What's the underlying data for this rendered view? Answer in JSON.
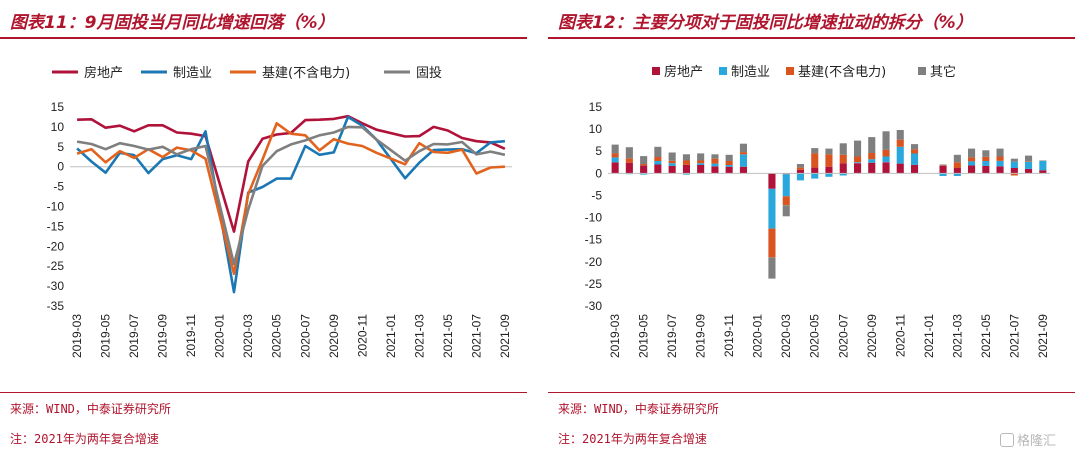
{
  "left": {
    "title": "图表11：9月固投当月同比增速回落（%）",
    "source": "来源：WIND，中泰证券研究所",
    "note": "注：2021年为两年复合增速",
    "chart_data": {
      "type": "line",
      "x": [
        "2019-03",
        "2019-04",
        "2019-05",
        "2019-06",
        "2019-07",
        "2019-08",
        "2019-09",
        "2019-10",
        "2019-11",
        "2019-12",
        "2020-01",
        "2020-02",
        "2020-03",
        "2020-04",
        "2020-05",
        "2020-06",
        "2020-07",
        "2020-08",
        "2020-09",
        "2020-10",
        "2020-11",
        "2020-12",
        "2021-01",
        "2021-02",
        "2021-03",
        "2021-04",
        "2021-05",
        "2021-06",
        "2021-07",
        "2021-08",
        "2021-09"
      ],
      "x_tick_labels": [
        "2019-03",
        "2019-05",
        "2019-07",
        "2019-09",
        "2019-11",
        "2020-01",
        "2020-03",
        "2020-05",
        "2020-07",
        "2020-09",
        "2020-11",
        "2021-01",
        "2021-03",
        "2021-05",
        "2021-07",
        "2021-09"
      ],
      "ylim": [
        -35,
        15
      ],
      "yticks": [
        15,
        10,
        5,
        0,
        -5,
        -10,
        -15,
        -20,
        -25,
        -30,
        -35
      ],
      "legend_position": "top",
      "series": [
        {
          "name": "房地产",
          "color": "#b0123a",
          "values": [
            11.8,
            11.9,
            9.8,
            10.3,
            8.9,
            10.4,
            10.4,
            8.6,
            8.3,
            7.7,
            null,
            -16.3,
            1.3,
            7.0,
            8.1,
            8.5,
            11.7,
            11.8,
            12.0,
            12.7,
            10.9,
            9.3,
            null,
            7.6,
            7.7,
            10.0,
            9.1,
            7.2,
            6.4,
            6.1,
            4.5
          ]
        },
        {
          "name": "制造业",
          "color": "#1c78b4",
          "values": [
            4.6,
            1.3,
            -1.5,
            3.5,
            2.9,
            -1.6,
            1.9,
            2.9,
            1.9,
            8.9,
            null,
            -31.5,
            -6.5,
            -5.1,
            -3.0,
            -3.0,
            5.2,
            3.0,
            3.6,
            12.5,
            10.3,
            6.8,
            null,
            -2.9,
            1.0,
            4.2,
            4.3,
            4.4,
            3.4,
            6.1,
            6.4
          ]
        },
        {
          "name": "基建(不含电力)",
          "color": "#e2631e",
          "values": [
            3.3,
            4.4,
            1.1,
            3.9,
            2.2,
            4.4,
            2.4,
            4.8,
            4.1,
            2.0,
            null,
            -26.9,
            -6.9,
            1.8,
            10.9,
            8.3,
            7.9,
            4.1,
            6.9,
            5.8,
            5.2,
            3.5,
            null,
            0.6,
            5.9,
            3.7,
            3.5,
            4.3,
            -1.7,
            -0.2,
            0.0
          ]
        },
        {
          "name": "固投",
          "color": "#7f7f7f",
          "values": [
            6.3,
            5.7,
            4.4,
            5.9,
            5.2,
            4.3,
            5.0,
            3.1,
            4.4,
            5.2,
            null,
            -24.5,
            -10.8,
            0.2,
            3.9,
            5.6,
            6.6,
            7.9,
            8.6,
            10.0,
            9.9,
            6.8,
            null,
            1.5,
            3.9,
            5.7,
            5.6,
            6.2,
            3.1,
            3.8,
            3.0
          ]
        }
      ]
    }
  },
  "right": {
    "title": "图表12：主要分项对于固投同比增速拉动的拆分（%）",
    "source": "来源：WIND，中泰证券研究所",
    "note": "注：2021年为两年复合增速",
    "chart_data": {
      "type": "bar",
      "stacked": true,
      "x": [
        "2019-03",
        "2019-04",
        "2019-05",
        "2019-06",
        "2019-07",
        "2019-08",
        "2019-09",
        "2019-10",
        "2019-11",
        "2019-12",
        "2020-01",
        "2020-02",
        "2020-03",
        "2020-04",
        "2020-05",
        "2020-06",
        "2020-07",
        "2020-08",
        "2020-09",
        "2020-10",
        "2020-11",
        "2020-12",
        "2021-01",
        "2021-02",
        "2021-03",
        "2021-04",
        "2021-05",
        "2021-06",
        "2021-07",
        "2021-08",
        "2021-09"
      ],
      "x_tick_labels": [
        "2019-03",
        "2019-05",
        "2019-07",
        "2019-09",
        "2019-11",
        "2020-01",
        "2020-03",
        "2020-05",
        "2020-07",
        "2020-09",
        "2020-11",
        "2021-01",
        "2021-03",
        "2021-05",
        "2021-07",
        "2021-09"
      ],
      "ylim": [
        -30,
        15
      ],
      "yticks": [
        15,
        10,
        5,
        0,
        -5,
        -10,
        -15,
        -20,
        -25,
        -30
      ],
      "legend_position": "top",
      "series": [
        {
          "name": "房地产",
          "color": "#b0123a",
          "values": [
            2.5,
            2.4,
            1.8,
            2.0,
            1.7,
            1.9,
            1.9,
            1.6,
            1.5,
            1.5,
            null,
            -3.5,
            -0.2,
            0.8,
            1.3,
            1.5,
            2.3,
            2.3,
            2.4,
            2.5,
            2.2,
            1.9,
            null,
            1.7,
            1.2,
            1.8,
            1.7,
            1.6,
            1.2,
            1.0,
            0.7
          ]
        },
        {
          "name": "制造业",
          "color": "#2aa8de",
          "values": [
            1.1,
            -0.2,
            -0.3,
            0.8,
            0.6,
            -0.3,
            0.4,
            0.6,
            0.4,
            2.8,
            null,
            -9.0,
            -5.0,
            -1.6,
            -1.2,
            -0.8,
            -0.5,
            0.2,
            0.8,
            1.3,
            3.8,
            2.6,
            null,
            -0.6,
            -0.6,
            0.9,
            1.1,
            1.2,
            1.4,
            1.6,
            2.1
          ]
        },
        {
          "name": "基建(不含电力)",
          "color": "#d9541e",
          "values": [
            0.9,
            1.0,
            0.3,
            0.9,
            0.5,
            1.0,
            0.6,
            1.1,
            0.9,
            0.5,
            null,
            -6.5,
            -2.0,
            0.5,
            3.2,
            2.8,
            1.9,
            1.3,
            1.4,
            1.5,
            1.6,
            0.9,
            null,
            0.1,
            1.3,
            0.9,
            0.9,
            1.0,
            -0.5,
            0.1,
            0.0
          ]
        },
        {
          "name": "其它",
          "color": "#7f7f7f",
          "values": [
            2.0,
            2.5,
            1.8,
            2.3,
            1.9,
            1.4,
            1.6,
            1.0,
            1.4,
            1.9,
            null,
            -4.8,
            -2.5,
            0.8,
            1.2,
            1.3,
            2.6,
            3.6,
            3.6,
            4.2,
            2.2,
            1.2,
            null,
            0.2,
            1.7,
            2.0,
            1.5,
            1.8,
            0.7,
            1.3,
            0.1
          ]
        }
      ]
    }
  },
  "watermark": {
    "text": "格隆汇"
  }
}
